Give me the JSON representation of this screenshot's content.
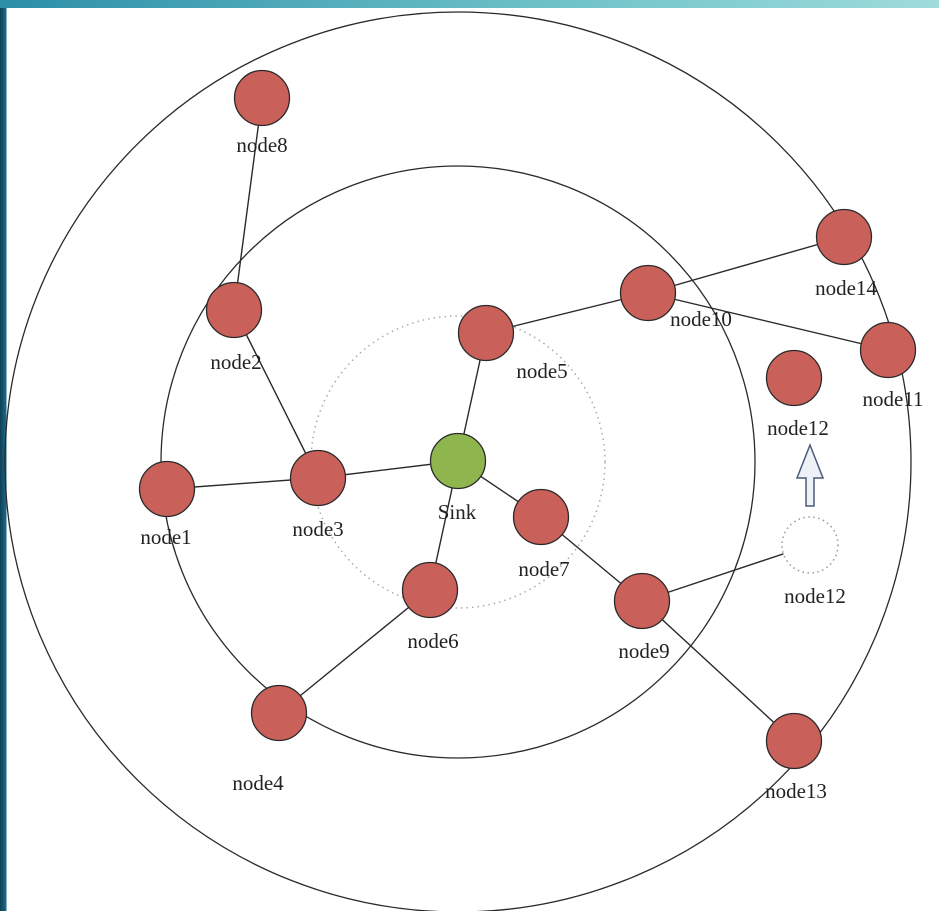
{
  "colors": {
    "node_fill": "#c9605a",
    "sink_fill": "#8fb54e",
    "stroke": "#2a2a2a",
    "arrow_fill": "#eef2f8",
    "arrow_stroke": "#4a5a7a",
    "ghost_stroke": "#999999"
  },
  "nodes": [
    {
      "id": "node8",
      "label": "node8"
    },
    {
      "id": "node2",
      "label": "node2"
    },
    {
      "id": "node1",
      "label": "node1"
    },
    {
      "id": "node3",
      "label": "node3"
    },
    {
      "id": "sink",
      "label": "Sink"
    },
    {
      "id": "node5",
      "label": "node5"
    },
    {
      "id": "node10",
      "label": "node10"
    },
    {
      "id": "node14",
      "label": "node14"
    },
    {
      "id": "node11",
      "label": "node11"
    },
    {
      "id": "node12",
      "label": "node12"
    },
    {
      "id": "node7",
      "label": "node7"
    },
    {
      "id": "node9",
      "label": "node9"
    },
    {
      "id": "node6",
      "label": "node6"
    },
    {
      "id": "node4",
      "label": "node4"
    },
    {
      "id": "node13",
      "label": "node13"
    },
    {
      "id": "node12-ghost",
      "label": "node12"
    }
  ],
  "edges": [
    [
      "node8",
      "node2"
    ],
    [
      "node2",
      "node3"
    ],
    [
      "node1",
      "node3"
    ],
    [
      "node3",
      "sink"
    ],
    [
      "sink",
      "node5"
    ],
    [
      "node5",
      "node10"
    ],
    [
      "node10",
      "node14"
    ],
    [
      "node10",
      "node11"
    ],
    [
      "sink",
      "node7"
    ],
    [
      "node7",
      "node9"
    ],
    [
      "node9",
      "node12-ghost"
    ],
    [
      "node9",
      "node13"
    ],
    [
      "sink",
      "node6"
    ],
    [
      "node6",
      "node4"
    ]
  ]
}
